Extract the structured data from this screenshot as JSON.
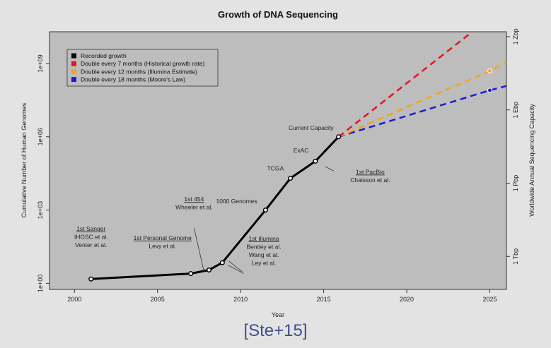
{
  "citation": "[Ste+15]",
  "chart_data": {
    "type": "line",
    "title": "Growth of DNA Sequencing",
    "xlabel": "Year",
    "ylabel": "Cumulative Number of Human Genomes",
    "y2label": "Worldwide Annual Sequencing Capacity",
    "xlim": [
      1998.5,
      2026
    ],
    "ylim_log10": [
      -0.25,
      10.3
    ],
    "y_scale": "log",
    "x_ticks": [
      2000,
      2005,
      2010,
      2015,
      2020,
      2025
    ],
    "y_ticks": [
      {
        "value": 1,
        "label": "1e+00"
      },
      {
        "value": 1000,
        "label": "1e+03"
      },
      {
        "value": 1000000,
        "label": "1e+06"
      },
      {
        "value": 1000000000,
        "label": "1e+09"
      }
    ],
    "y2_ticks": [
      {
        "log10": 1.1,
        "label": "1 Tbp"
      },
      {
        "log10": 4.1,
        "label": "1 Pbp"
      },
      {
        "log10": 7.1,
        "label": "1 Ebp"
      },
      {
        "log10": 10.1,
        "label": "1 Zbp"
      }
    ],
    "legend_position": "top-left",
    "grid": false,
    "series": [
      {
        "name": "Recorded growth",
        "color": "#000000",
        "style": "solid",
        "points": [
          [
            2001,
            1.5
          ],
          [
            2007,
            2.5
          ],
          [
            2008.1,
            3.5
          ],
          [
            2008.9,
            7
          ],
          [
            2011.5,
            1000
          ],
          [
            2013,
            20000
          ],
          [
            2014.5,
            100000
          ],
          [
            2015.9,
            1000000
          ]
        ]
      },
      {
        "name": "Double every 7 months (Historical growth rate)",
        "color": "#e8141c",
        "style": "dashed",
        "points": [
          [
            2015.9,
            1000000
          ],
          [
            2024.3,
            31000000000
          ]
        ]
      },
      {
        "name": "Double every 12 months (Illumina Estimate)",
        "color": "#f5a418",
        "style": "dashed",
        "points": [
          [
            2015.9,
            1000000
          ],
          [
            2025,
            500000000
          ],
          [
            2026,
            1100000000
          ]
        ]
      },
      {
        "name": "Double every 18 months (Moore's Law)",
        "color": "#1a1ad6",
        "style": "dashed",
        "points": [
          [
            2015.9,
            1000000
          ],
          [
            2025,
            80000000
          ],
          [
            2026,
            120000000
          ]
        ]
      }
    ],
    "projection_markers": [
      {
        "series": 2,
        "x": 2025,
        "y": 500000000
      },
      {
        "series": 3,
        "x": 2025,
        "y": 80000000
      }
    ],
    "annotations": [
      {
        "lines": [
          "1st Sanger",
          "IHGSC et al.",
          "Venter et al."
        ],
        "underline_first": true,
        "x": 2001,
        "y": 140,
        "anchor": "middle"
      },
      {
        "lines": [
          "1st Personal Genome",
          "Levy et al."
        ],
        "underline_first": true,
        "x": 2005.3,
        "y": 60,
        "anchor": "middle"
      },
      {
        "lines": [
          "1st 454",
          "Wheeler et al."
        ],
        "underline_first": true,
        "x": 2007.2,
        "y": 2300,
        "anchor": "middle"
      },
      {
        "lines": [
          "1st Illumina",
          "Bentley et al.",
          "Wang et al.",
          "Ley et al."
        ],
        "underline_first": true,
        "x": 2011.4,
        "y": 55,
        "anchor": "middle"
      },
      {
        "lines": [
          "1000 Genomes"
        ],
        "underline_first": false,
        "x": 2011,
        "y": 1900,
        "anchor": "end"
      },
      {
        "lines": [
          "TCGA"
        ],
        "underline_first": false,
        "x": 2012.6,
        "y": 42000,
        "anchor": "end"
      },
      {
        "lines": [
          "ExAC"
        ],
        "underline_first": false,
        "x": 2014.1,
        "y": 230000,
        "anchor": "end"
      },
      {
        "lines": [
          "Current Capacity"
        ],
        "underline_first": false,
        "x": 2015.6,
        "y": 1900000,
        "anchor": "end"
      },
      {
        "lines": [
          "1st PacBio",
          "Chaisson et al."
        ],
        "underline_first": true,
        "x": 2017.8,
        "y": 30000,
        "anchor": "middle"
      }
    ]
  }
}
